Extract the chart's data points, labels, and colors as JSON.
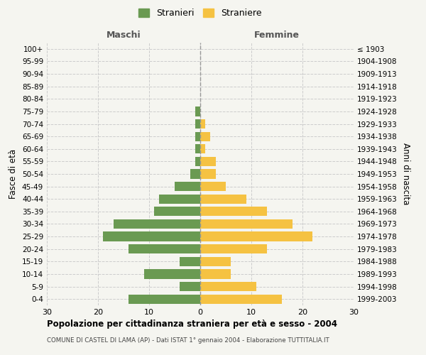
{
  "age_groups": [
    "0-4",
    "5-9",
    "10-14",
    "15-19",
    "20-24",
    "25-29",
    "30-34",
    "35-39",
    "40-44",
    "45-49",
    "50-54",
    "55-59",
    "60-64",
    "65-69",
    "70-74",
    "75-79",
    "80-84",
    "85-89",
    "90-94",
    "95-99",
    "100+"
  ],
  "birth_years": [
    "1999-2003",
    "1994-1998",
    "1989-1993",
    "1984-1988",
    "1979-1983",
    "1974-1978",
    "1969-1973",
    "1964-1968",
    "1959-1963",
    "1954-1958",
    "1949-1953",
    "1944-1948",
    "1939-1943",
    "1934-1938",
    "1929-1933",
    "1924-1928",
    "1919-1923",
    "1914-1918",
    "1909-1913",
    "1904-1908",
    "≤ 1903"
  ],
  "maschi": [
    14,
    4,
    11,
    4,
    14,
    19,
    17,
    9,
    8,
    5,
    2,
    1,
    1,
    1,
    1,
    1,
    0,
    0,
    0,
    0,
    0
  ],
  "femmine": [
    16,
    11,
    6,
    6,
    13,
    22,
    18,
    13,
    9,
    5,
    3,
    3,
    1,
    2,
    1,
    0,
    0,
    0,
    0,
    0,
    0
  ],
  "maschi_color": "#6a9a52",
  "femmine_color": "#f5c242",
  "title": "Popolazione per cittadinanza straniera per età e sesso - 2004",
  "subtitle": "COMUNE DI CASTEL DI LAMA (AP) - Dati ISTAT 1° gennaio 2004 - Elaborazione TUTTITALIA.IT",
  "xlabel_left": "Maschi",
  "xlabel_right": "Femmine",
  "ylabel_left": "Fasce di età",
  "ylabel_right": "Anni di nascita",
  "xlim": 30,
  "legend_stranieri": "Stranieri",
  "legend_straniere": "Straniere",
  "background_color": "#f5f5f0",
  "grid_color": "#cccccc"
}
